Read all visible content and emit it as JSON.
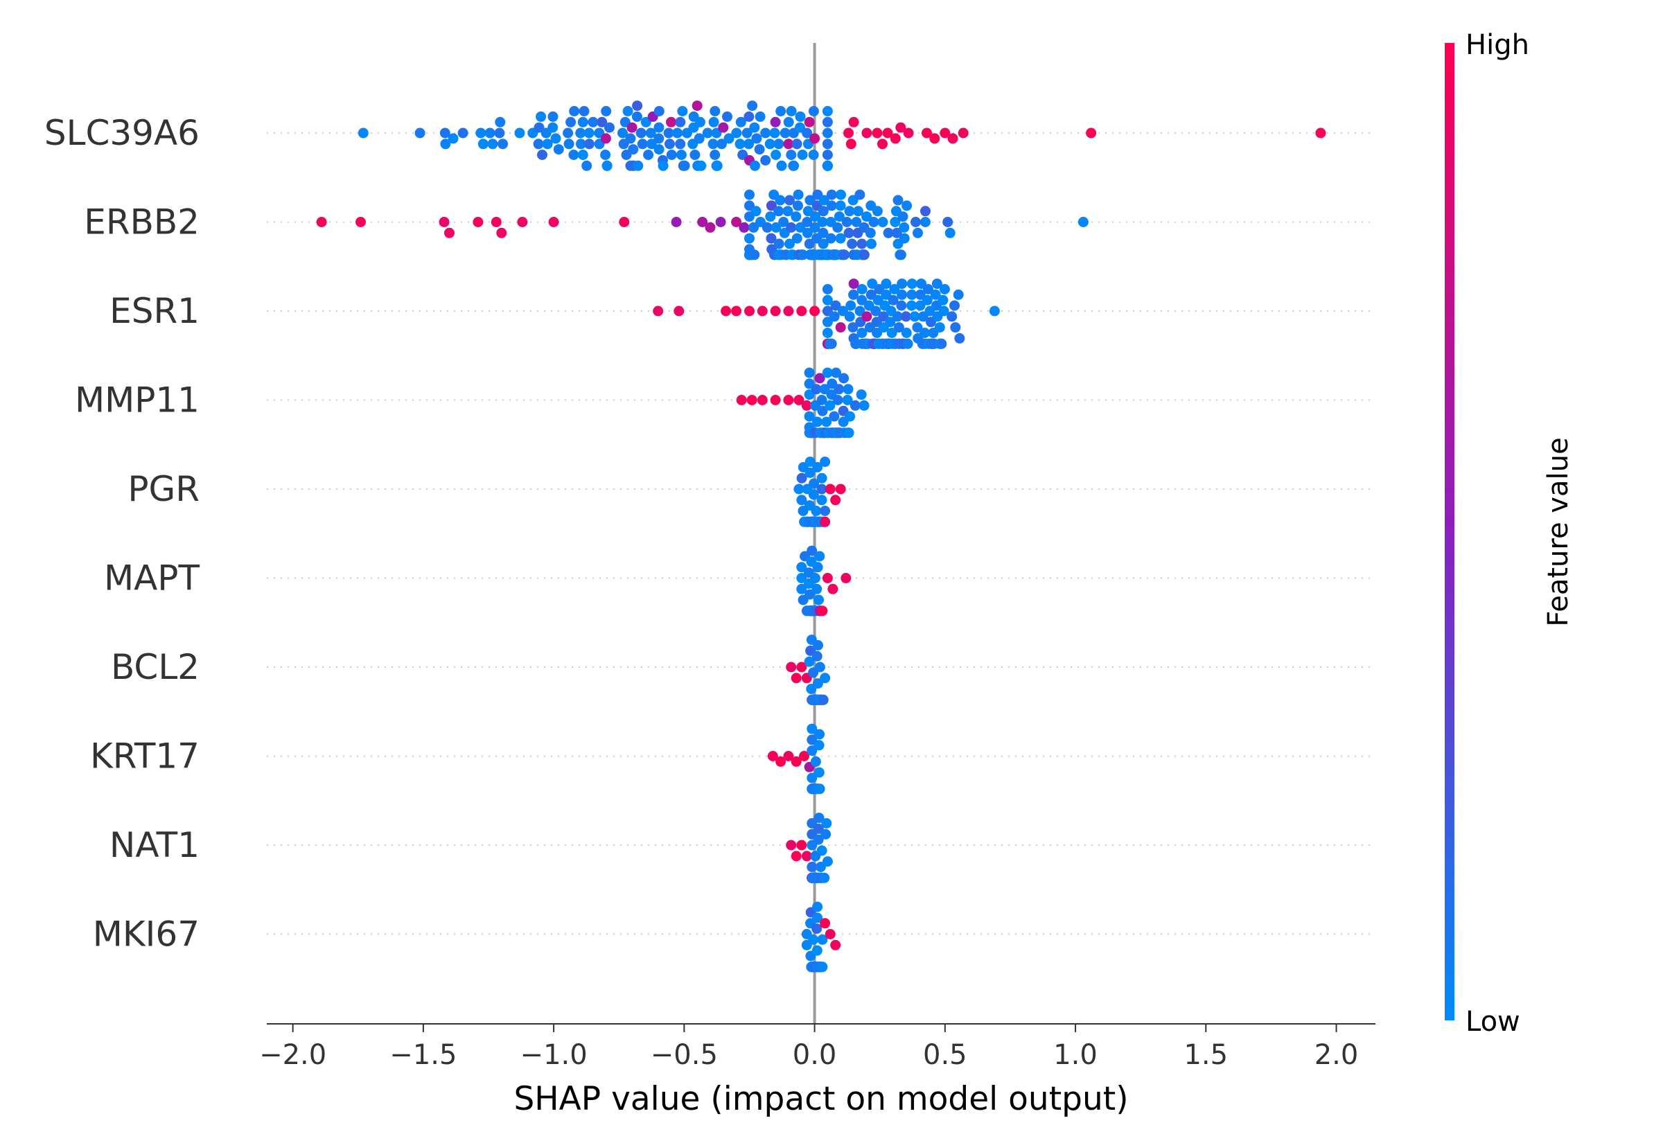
{
  "chart_data": {
    "type": "scatter",
    "subtype": "shap-beeswarm",
    "title": "",
    "xlabel": "SHAP value (impact on model output)",
    "ylabel": "",
    "xlim": [
      -2.1,
      2.15
    ],
    "xticks": [
      -2.0,
      -1.5,
      -1.0,
      -0.5,
      0.0,
      0.5,
      1.0,
      1.5,
      2.0
    ],
    "xtick_labels": [
      "−2.0",
      "−1.5",
      "−1.0",
      "−0.5",
      "0.0",
      "0.5",
      "1.0",
      "1.5",
      "2.0"
    ],
    "grid": false,
    "colorbar": {
      "label": "Feature value",
      "high_label": "High",
      "low_label": "Low",
      "high_color": "#ff0051",
      "mid_color": "#8b1fbf",
      "low_color": "#008bfb"
    },
    "features": [
      {
        "name": "SLC39A6",
        "low_cluster": {
          "center": -0.55,
          "spread": 0.42,
          "min": -1.73,
          "max": 0.05,
          "count": 150
        },
        "high_points": [
          0.14,
          0.13,
          0.15,
          0.2,
          0.24,
          0.26,
          0.28,
          0.31,
          0.33,
          0.36,
          0.43,
          0.46,
          0.5,
          0.53,
          0.57,
          1.06,
          1.94
        ],
        "mid_points": [
          -0.8,
          -0.7,
          -0.62,
          -0.55,
          -0.45,
          -0.35,
          -0.25,
          -0.15,
          -0.1,
          0.0,
          -0.02
        ]
      },
      {
        "name": "ERBB2",
        "low_cluster": {
          "center": 0.02,
          "spread": 0.18,
          "min": -0.25,
          "max": 1.03,
          "count": 160
        },
        "high_points": [
          -1.89,
          -1.74,
          -1.42,
          -1.4,
          -1.29,
          -1.22,
          -1.2,
          -1.12,
          -1.0,
          -0.73
        ],
        "mid_points": [
          -0.53,
          -0.43,
          -0.4,
          -0.36,
          -0.3,
          -0.27
        ]
      },
      {
        "name": "ESR1",
        "low_cluster": {
          "center": 0.3,
          "spread": 0.16,
          "min": 0.05,
          "max": 0.69,
          "count": 130
        },
        "high_points": [
          -0.6,
          -0.52,
          -0.34,
          -0.3,
          -0.25,
          -0.2,
          -0.15,
          -0.1,
          -0.05,
          0.0
        ],
        "mid_points": [
          0.05,
          0.1,
          0.15,
          0.2
        ]
      },
      {
        "name": "MMP11",
        "low_cluster": {
          "center": 0.06,
          "spread": 0.05,
          "min": -0.02,
          "max": 0.19,
          "count": 60
        },
        "high_points": [
          -0.28,
          -0.24,
          -0.2,
          -0.15,
          -0.1,
          -0.06,
          -0.03
        ],
        "mid_points": [
          0.02,
          0.05
        ]
      },
      {
        "name": "PGR",
        "low_cluster": {
          "center": 0.0,
          "spread": 0.025,
          "min": -0.06,
          "max": 0.04,
          "count": 45
        },
        "high_points": [
          0.04,
          0.06,
          0.08,
          0.1
        ],
        "mid_points": [
          0.03
        ]
      },
      {
        "name": "MAPT",
        "low_cluster": {
          "center": -0.01,
          "spread": 0.02,
          "min": -0.05,
          "max": 0.02,
          "count": 45
        },
        "high_points": [
          0.03,
          0.05,
          0.07,
          0.12
        ],
        "mid_points": [
          0.02
        ]
      },
      {
        "name": "BCL2",
        "low_cluster": {
          "center": 0.01,
          "spread": 0.015,
          "min": -0.02,
          "max": 0.04,
          "count": 40
        },
        "high_points": [
          -0.09,
          -0.07,
          -0.05,
          -0.03
        ],
        "mid_points": [
          -0.01
        ]
      },
      {
        "name": "KRT17",
        "low_cluster": {
          "center": 0.0,
          "spread": 0.01,
          "min": -0.01,
          "max": 0.02,
          "count": 40
        },
        "high_points": [
          -0.16,
          -0.13,
          -0.1,
          -0.07,
          -0.04
        ],
        "mid_points": [
          -0.02
        ]
      },
      {
        "name": "NAT1",
        "low_cluster": {
          "center": 0.01,
          "spread": 0.015,
          "min": -0.01,
          "max": 0.05,
          "count": 40
        },
        "high_points": [
          -0.09,
          -0.07,
          -0.05,
          -0.03
        ],
        "mid_points": [
          -0.01
        ]
      },
      {
        "name": "MKI67",
        "low_cluster": {
          "center": 0.0,
          "spread": 0.015,
          "min": -0.03,
          "max": 0.03,
          "count": 40
        },
        "high_points": [
          0.02,
          0.04,
          0.06,
          0.08
        ],
        "mid_points": [
          0.02
        ]
      }
    ]
  }
}
